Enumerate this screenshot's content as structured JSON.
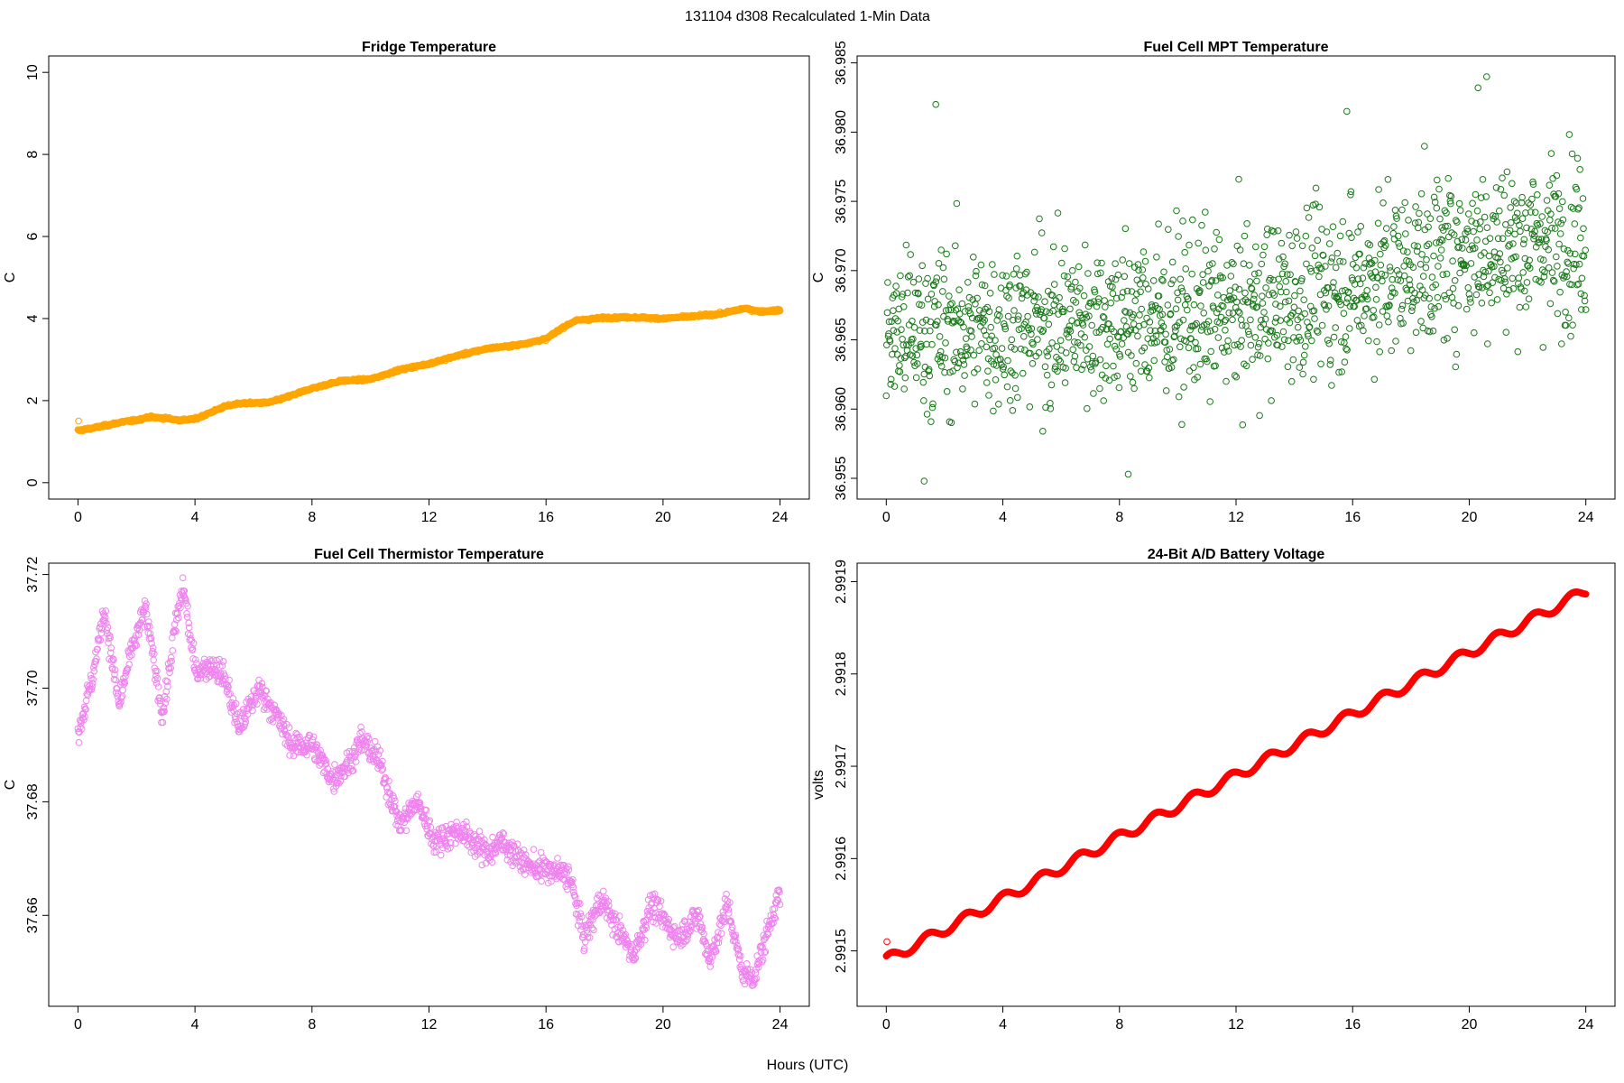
{
  "figure": {
    "title": "131104   d308   Recalculated 1-Min Data",
    "xlabel": "Hours (UTC)"
  },
  "chart_data": [
    {
      "id": "fridge",
      "type": "scatter",
      "title": "Fridge Temperature",
      "ylabel": "C",
      "xlabel": "Hours (UTC)",
      "color": "#FFA500",
      "xlim": [
        -1,
        25
      ],
      "ylim": [
        -0.4,
        10.4
      ],
      "xticks": [
        0,
        4,
        8,
        12,
        16,
        20,
        24
      ],
      "yticks": [
        0,
        2,
        4,
        6,
        8,
        10
      ],
      "ytick_labels": [
        "0",
        "2",
        "4",
        "6",
        "8",
        "10"
      ],
      "series_shape": "trend",
      "x": [
        0,
        0.5,
        1,
        1.5,
        2,
        2.4,
        3,
        3.5,
        4,
        4.5,
        5,
        5.5,
        6.5,
        7,
        8,
        9,
        10,
        11,
        12,
        13,
        14,
        15,
        16,
        16.5,
        17,
        18,
        19,
        20,
        21,
        22,
        22.8,
        23.3,
        24
      ],
      "values": [
        1.27,
        1.33,
        1.4,
        1.48,
        1.52,
        1.6,
        1.57,
        1.52,
        1.55,
        1.7,
        1.85,
        1.93,
        1.95,
        2.05,
        2.3,
        2.48,
        2.52,
        2.75,
        2.9,
        3.1,
        3.27,
        3.35,
        3.5,
        3.75,
        3.95,
        4.02,
        4.03,
        4.0,
        4.05,
        4.12,
        4.25,
        4.17,
        4.2
      ],
      "noise": 0.02,
      "count": 1440,
      "outliers": [
        {
          "x": 0.02,
          "y": 1.5
        }
      ]
    },
    {
      "id": "mpt",
      "type": "scatter",
      "title": "Fuel Cell MPT Temperature",
      "ylabel": "C",
      "xlabel": "Hours (UTC)",
      "color": "#1A7A1A",
      "xlim": [
        -1,
        25
      ],
      "ylim": [
        36.9535,
        36.9855
      ],
      "xticks": [
        0,
        4,
        8,
        12,
        16,
        20,
        24
      ],
      "yticks": [
        36.955,
        36.96,
        36.965,
        36.97,
        36.975,
        36.98,
        36.985
      ],
      "ytick_labels": [
        "36.955",
        "36.960",
        "36.965",
        "36.970",
        "36.975",
        "36.980",
        "36.985"
      ],
      "series_shape": "scatter",
      "x": [
        0,
        4,
        8,
        12,
        16,
        20,
        24
      ],
      "values": [
        36.9655,
        36.966,
        36.9665,
        36.967,
        36.969,
        36.9715,
        36.9725
      ],
      "noise": 0.0042,
      "count": 1440,
      "outliers": [
        {
          "x": 1.7,
          "y": 36.982
        },
        {
          "x": 20.6,
          "y": 36.984
        },
        {
          "x": 20.3,
          "y": 36.9832
        },
        {
          "x": 15.8,
          "y": 36.9815
        },
        {
          "x": 1.3,
          "y": 36.9548
        },
        {
          "x": 8.3,
          "y": 36.9553
        }
      ]
    },
    {
      "id": "thermistor",
      "type": "scatter",
      "title": "Fuel Cell Thermistor Temperature",
      "ylabel": "C",
      "xlabel": "Hours (UTC)",
      "color": "#EE82EE",
      "xlim": [
        -1,
        25
      ],
      "ylim": [
        37.644,
        37.722
      ],
      "xticks": [
        0,
        4,
        8,
        12,
        16,
        20,
        24
      ],
      "yticks": [
        37.66,
        37.68,
        37.7,
        37.72
      ],
      "ytick_labels": [
        "37.66",
        "37.68",
        "37.70",
        "37.72"
      ],
      "series_shape": "wiggly",
      "x": [
        0,
        0.5,
        0.9,
        1.4,
        1.8,
        2.3,
        2.9,
        3.3,
        3.6,
        4.0,
        4.6,
        5.0,
        5.5,
        6.2,
        6.8,
        7.3,
        8.0,
        8.7,
        9.3,
        9.7,
        10.3,
        11.0,
        11.6,
        12.2,
        13.0,
        14.0,
        14.5,
        15.3,
        16.0,
        16.8,
        17.3,
        17.9,
        18.4,
        19.0,
        19.6,
        20.5,
        21.2,
        21.6,
        22.2,
        22.7,
        23.1,
        23.4,
        23.9,
        24
      ],
      "values": [
        37.692,
        37.702,
        37.714,
        37.697,
        37.706,
        37.714,
        37.695,
        37.71,
        37.718,
        37.703,
        37.704,
        37.702,
        37.693,
        37.7,
        37.695,
        37.69,
        37.69,
        37.684,
        37.687,
        37.691,
        37.687,
        37.676,
        37.68,
        37.673,
        37.675,
        37.671,
        37.673,
        37.669,
        37.668,
        37.667,
        37.656,
        37.663,
        37.658,
        37.653,
        37.662,
        37.656,
        37.66,
        37.652,
        37.662,
        37.65,
        37.649,
        37.654,
        37.663,
        37.663
      ],
      "noise": 0.0016,
      "count": 1440,
      "outliers": []
    },
    {
      "id": "battery",
      "type": "scatter",
      "title": "24-Bit A/D Battery Voltage",
      "ylabel": "volts",
      "xlabel": "Hours (UTC)",
      "color": "#FF0000",
      "xlim": [
        -1,
        25
      ],
      "ylim": [
        2.99144,
        2.99192
      ],
      "xticks": [
        0,
        4,
        8,
        12,
        16,
        20,
        24
      ],
      "yticks": [
        2.9915,
        2.9916,
        2.9917,
        2.9918,
        2.9919
      ],
      "ytick_labels": [
        "2.9915",
        "2.9916",
        "2.9917",
        "2.9918",
        "2.9919"
      ],
      "series_shape": "smooth-oscillating",
      "x": [
        0,
        24
      ],
      "values": [
        2.99149,
        2.99189
      ],
      "osc_amplitude": 5.5e-06,
      "osc_period_hours": 1.3,
      "osc_phase": 0.15,
      "count": 1440,
      "outliers": [
        {
          "x": 0.02,
          "y": 2.99151
        }
      ]
    }
  ]
}
